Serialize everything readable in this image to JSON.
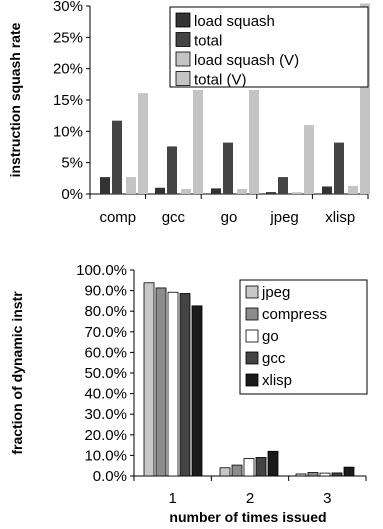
{
  "chart_data": [
    {
      "type": "bar",
      "ylabel": "instruction squash rate",
      "xlabel": "",
      "ylim": [
        0,
        30
      ],
      "yticks": [
        "0%",
        "5%",
        "10%",
        "15%",
        "20%",
        "25%",
        "30%"
      ],
      "categories": [
        "comp",
        "gcc",
        "go",
        "jpeg",
        "xlisp"
      ],
      "legend_position": "top-center",
      "series": [
        {
          "name": "load squash",
          "color": "#333333",
          "values": [
            2.7,
            1.0,
            0.9,
            0.3,
            1.2
          ]
        },
        {
          "name": "total",
          "color": "#444444",
          "values": [
            11.7,
            7.6,
            8.2,
            2.7,
            8.2
          ]
        },
        {
          "name": "load squash (V)",
          "color": "#c4c4c4",
          "values": [
            2.7,
            0.8,
            0.8,
            0.3,
            1.3
          ]
        },
        {
          "name": "total (V)",
          "color": "#c4c4c4",
          "values": [
            16.1,
            16.6,
            16.6,
            11.0,
            30.4
          ]
        }
      ]
    },
    {
      "type": "bar",
      "ylabel": "fraction of dynamic instr",
      "xlabel": "number of times issued",
      "ylim": [
        0,
        100
      ],
      "yticks": [
        "0.0%",
        "10.0%",
        "20.0%",
        "30.0%",
        "40.0%",
        "50.0%",
        "60.0%",
        "70.0%",
        "80.0%",
        "90.0%",
        "100.0%"
      ],
      "categories": [
        "1",
        "2",
        "3"
      ],
      "legend_position": "right",
      "series": [
        {
          "name": "jpeg",
          "color": "#c8c8c8",
          "values": [
            93.8,
            4.0,
            1.0
          ]
        },
        {
          "name": "compress",
          "color": "#8c8c8c",
          "values": [
            91.3,
            5.3,
            1.7
          ]
        },
        {
          "name": "go",
          "color": "#ffffff",
          "values": [
            89.2,
            8.5,
            1.4
          ]
        },
        {
          "name": "gcc",
          "color": "#444444",
          "values": [
            88.6,
            9.0,
            1.5
          ]
        },
        {
          "name": "xlisp",
          "color": "#1a1a1a",
          "values": [
            82.6,
            12.0,
            4.3
          ]
        }
      ]
    }
  ]
}
